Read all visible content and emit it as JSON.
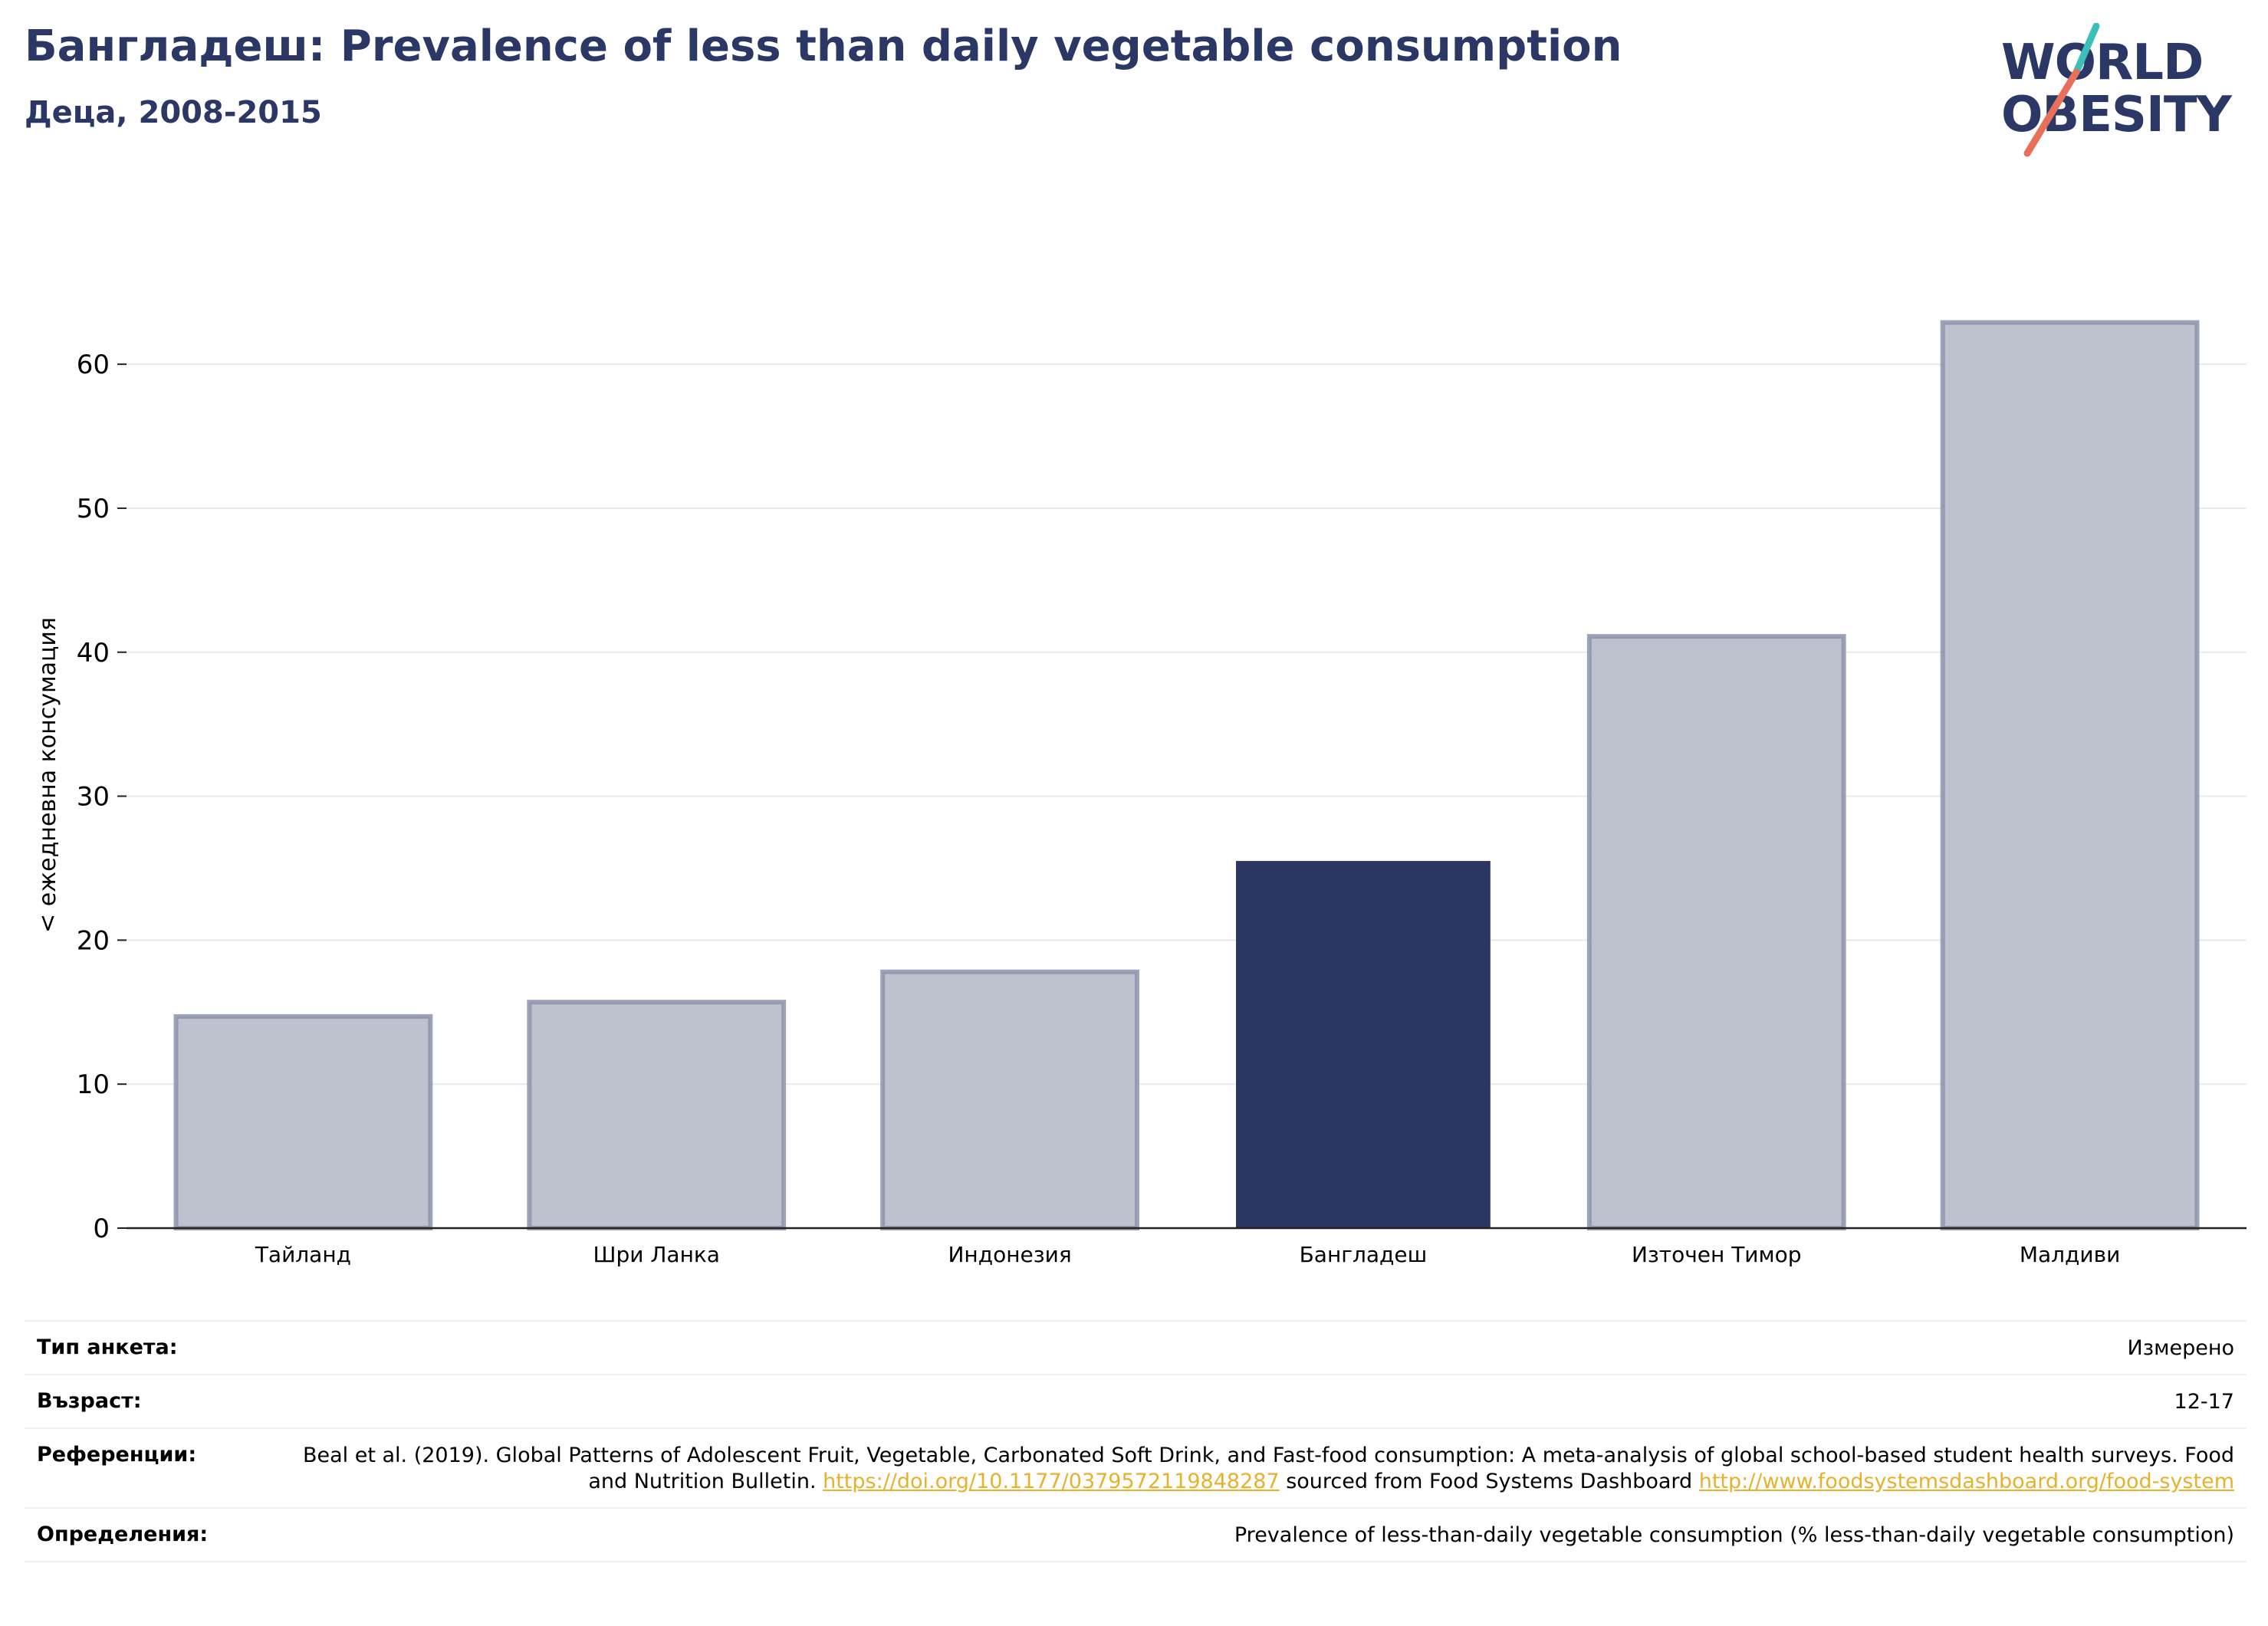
{
  "header": {
    "title": "Бангладеш: Prevalence of less than daily vegetable consumption",
    "subtitle": "Деца, 2008-2015"
  },
  "logo": {
    "line1": "WORLD",
    "line2": "OBESITY",
    "colors": {
      "text": "#2b3866",
      "slash_top": "#3bbfb8",
      "slash_bottom": "#e8705a"
    }
  },
  "chart_data": {
    "type": "bar",
    "title": "",
    "xlabel": "",
    "ylabel": "< ежедневна консумация",
    "categories": [
      "Тайланд",
      "Шри Ланка",
      "Индонезия",
      "Бангладеш",
      "Източен Тимор",
      "Малдиви"
    ],
    "values": [
      14.7,
      15.7,
      17.8,
      25.5,
      41.1,
      62.9
    ],
    "highlight": "Бангладеш",
    "ylim": [
      0,
      64
    ],
    "yticks": [
      0,
      10,
      20,
      30,
      40,
      50,
      60
    ],
    "grid": true,
    "colors": {
      "highlight": "#2b3663",
      "default": "#bec1ce",
      "default_edge": "#8c93ad",
      "grid": "#e8eaf0",
      "axis": "#222222"
    }
  },
  "footer": {
    "rows": [
      {
        "label": "Тип анкета:",
        "value": "Измерено"
      },
      {
        "label": "Възраст:",
        "value": "12-17"
      },
      {
        "label": "Референции:",
        "text1": "Beal et al. (2019). Global Patterns of Adolescent Fruit, Vegetable, Carbonated Soft Drink, and Fast-food consumption: A meta-analysis of global school-based student health surveys. Food and Nutrition Bulletin. ",
        "link1": "https://doi.org/10.1177/0379572119848287",
        "text2": " sourced from Food Systems Dashboard ",
        "link2": "http://www.foodsystemsdashboard.org/food-system"
      },
      {
        "label": "Определения:",
        "value": "Prevalence of less-than-daily vegetable consumption (% less-than-daily vegetable consumption)"
      }
    ]
  }
}
